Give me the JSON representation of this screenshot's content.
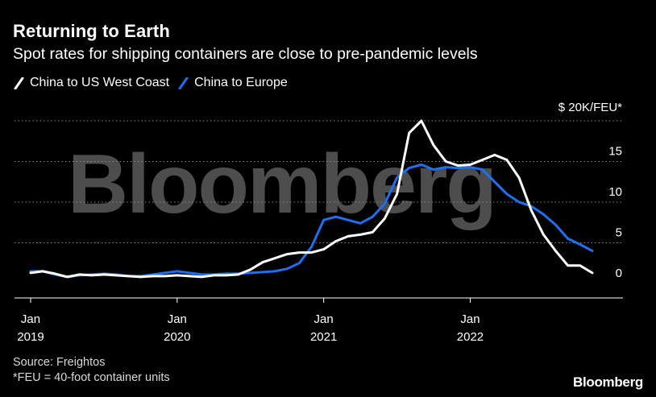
{
  "header": {
    "title": "Returning to Earth",
    "subtitle": "Spot rates for shipping containers are close to pre-pandemic levels"
  },
  "watermark": "Bloomberg",
  "footer": {
    "source": "Source: Freightos",
    "footnote": "*FEU = 40-foot container units",
    "brand": "Bloomberg"
  },
  "colors": {
    "background": "#000000",
    "us_west_coast": "#ffffff",
    "europe": "#1f6ff2",
    "grid": "#8a8a8a"
  },
  "chart_data": {
    "type": "line",
    "unit_label": "$ 20K/FEU*",
    "x_ticks": [
      {
        "date": "2019-01",
        "label": [
          "Jan",
          "2019"
        ]
      },
      {
        "date": "2020-01",
        "label": [
          "Jan",
          "2020"
        ]
      },
      {
        "date": "2021-01",
        "label": [
          "Jan",
          "2021"
        ]
      },
      {
        "date": "2022-01",
        "label": [
          "Jan",
          "2022"
        ]
      }
    ],
    "y_ticks": [
      0,
      5,
      10,
      15,
      20
    ],
    "ylim": [
      0,
      20000
    ],
    "xlim": [
      "2019-01",
      "2022-11"
    ],
    "legend_position": "top-left",
    "grid": true,
    "series": [
      {
        "name": "China to US West Coast",
        "color": "#ffffff",
        "points": [
          [
            "2019-01",
            1300
          ],
          [
            "2019-02",
            1500
          ],
          [
            "2019-03",
            1200
          ],
          [
            "2019-04",
            800
          ],
          [
            "2019-05",
            1100
          ],
          [
            "2019-06",
            1000
          ],
          [
            "2019-07",
            1100
          ],
          [
            "2019-08",
            1000
          ],
          [
            "2019-09",
            900
          ],
          [
            "2019-10",
            800
          ],
          [
            "2019-11",
            900
          ],
          [
            "2019-12",
            900
          ],
          [
            "2020-01",
            1000
          ],
          [
            "2020-02",
            900
          ],
          [
            "2020-03",
            800
          ],
          [
            "2020-04",
            1000
          ],
          [
            "2020-05",
            1000
          ],
          [
            "2020-06",
            1100
          ],
          [
            "2020-07",
            1700
          ],
          [
            "2020-08",
            2600
          ],
          [
            "2020-09",
            3100
          ],
          [
            "2020-10",
            3600
          ],
          [
            "2020-11",
            3800
          ],
          [
            "2020-12",
            3800
          ],
          [
            "2021-01",
            4200
          ],
          [
            "2021-02",
            5200
          ],
          [
            "2021-03",
            5800
          ],
          [
            "2021-04",
            6000
          ],
          [
            "2021-05",
            6300
          ],
          [
            "2021-06",
            8000
          ],
          [
            "2021-07",
            11000
          ],
          [
            "2021-08",
            18500
          ],
          [
            "2021-09",
            20000
          ],
          [
            "2021-10",
            17000
          ],
          [
            "2021-11",
            15000
          ],
          [
            "2021-12",
            14500
          ],
          [
            "2022-01",
            14600
          ],
          [
            "2022-02",
            15200
          ],
          [
            "2022-03",
            15800
          ],
          [
            "2022-04",
            15200
          ],
          [
            "2022-05",
            13000
          ],
          [
            "2022-06",
            9000
          ],
          [
            "2022-07",
            6000
          ],
          [
            "2022-08",
            4000
          ],
          [
            "2022-09",
            2200
          ],
          [
            "2022-10",
            2200
          ],
          [
            "2022-11",
            1300
          ]
        ]
      },
      {
        "name": "China to Europe",
        "color": "#1f6ff2",
        "points": [
          [
            "2019-01",
            1500
          ],
          [
            "2019-02",
            1500
          ],
          [
            "2019-03",
            1100
          ],
          [
            "2019-04",
            800
          ],
          [
            "2019-05",
            1000
          ],
          [
            "2019-06",
            1100
          ],
          [
            "2019-07",
            1200
          ],
          [
            "2019-08",
            1100
          ],
          [
            "2019-09",
            900
          ],
          [
            "2019-10",
            900
          ],
          [
            "2019-11",
            1100
          ],
          [
            "2019-12",
            1300
          ],
          [
            "2020-01",
            1500
          ],
          [
            "2020-02",
            1300
          ],
          [
            "2020-03",
            1100
          ],
          [
            "2020-04",
            1100
          ],
          [
            "2020-05",
            1200
          ],
          [
            "2020-06",
            1200
          ],
          [
            "2020-07",
            1300
          ],
          [
            "2020-08",
            1400
          ],
          [
            "2020-09",
            1500
          ],
          [
            "2020-10",
            1800
          ],
          [
            "2020-11",
            2500
          ],
          [
            "2020-12",
            4500
          ],
          [
            "2021-01",
            7800
          ],
          [
            "2021-02",
            8200
          ],
          [
            "2021-03",
            7800
          ],
          [
            "2021-04",
            7400
          ],
          [
            "2021-05",
            8200
          ],
          [
            "2021-06",
            9800
          ],
          [
            "2021-07",
            13000
          ],
          [
            "2021-08",
            14200
          ],
          [
            "2021-09",
            14600
          ],
          [
            "2021-10",
            14000
          ],
          [
            "2021-11",
            14300
          ],
          [
            "2021-12",
            14200
          ],
          [
            "2022-01",
            14300
          ],
          [
            "2022-02",
            14000
          ],
          [
            "2022-03",
            12500
          ],
          [
            "2022-04",
            11000
          ],
          [
            "2022-05",
            10000
          ],
          [
            "2022-06",
            9500
          ],
          [
            "2022-07",
            8500
          ],
          [
            "2022-08",
            7200
          ],
          [
            "2022-09",
            5500
          ],
          [
            "2022-10",
            4800
          ],
          [
            "2022-11",
            4000
          ]
        ]
      }
    ]
  }
}
